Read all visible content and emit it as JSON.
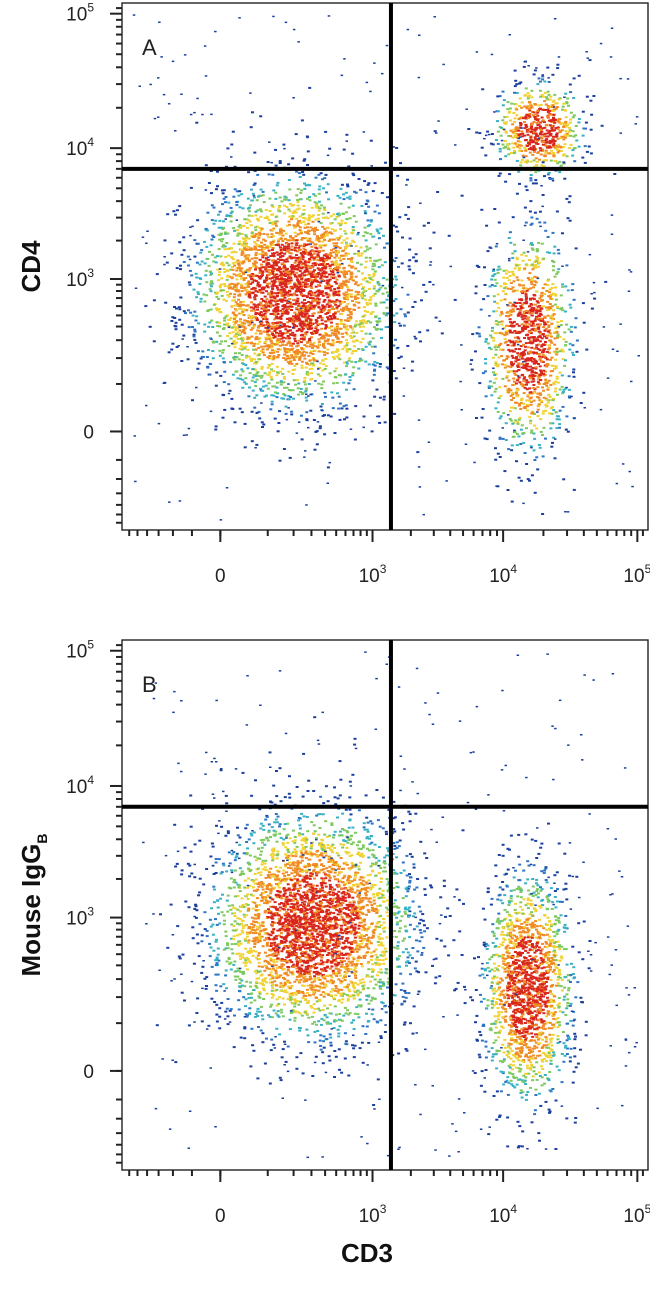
{
  "chart_data": [
    {
      "type": "scatter",
      "panel_label": "A",
      "xlabel": "",
      "ylabel": "CD4",
      "ylabel_sub": "",
      "x_scale": "biexponential",
      "y_scale": "biexponential",
      "x_ticks": [
        {
          "value": 0,
          "base": "0",
          "exp": ""
        },
        {
          "value": 1000,
          "base": "10",
          "exp": "3"
        },
        {
          "value": 10000,
          "base": "10",
          "exp": "4"
        },
        {
          "value": 100000,
          "base": "10",
          "exp": "5"
        }
      ],
      "y_ticks": [
        {
          "value": 0,
          "base": "0",
          "exp": ""
        },
        {
          "value": 1000,
          "base": "10",
          "exp": "3"
        },
        {
          "value": 10000,
          "base": "10",
          "exp": "4"
        },
        {
          "value": 100000,
          "base": "10",
          "exp": "5"
        }
      ],
      "quadrant_gate": {
        "x": 1400,
        "y": 7000
      },
      "populations": [
        {
          "description": "CD3- CD4- / dim",
          "x_center": 200,
          "y_center": 800,
          "share": 0.66
        },
        {
          "description": "CD3+ CD4+",
          "x_center": 18000,
          "y_center": 14000,
          "share": 0.12
        },
        {
          "description": "CD3+ CD4-",
          "x_center": 15000,
          "y_center": 300,
          "share": 0.22
        }
      ],
      "colormap": [
        "#1a3f9e",
        "#2f74c4",
        "#39b1c4",
        "#7dc95e",
        "#f1d233",
        "#f08a24",
        "#d9261c"
      ]
    },
    {
      "type": "scatter",
      "panel_label": "B",
      "xlabel": "CD3",
      "ylabel": "Mouse IgG",
      "ylabel_sub": "B",
      "x_scale": "biexponential",
      "y_scale": "biexponential",
      "x_ticks": [
        {
          "value": 0,
          "base": "0",
          "exp": ""
        },
        {
          "value": 1000,
          "base": "10",
          "exp": "3"
        },
        {
          "value": 10000,
          "base": "10",
          "exp": "4"
        },
        {
          "value": 100000,
          "base": "10",
          "exp": "5"
        }
      ],
      "y_ticks": [
        {
          "value": 0,
          "base": "0",
          "exp": ""
        },
        {
          "value": 1000,
          "base": "10",
          "exp": "3"
        },
        {
          "value": 10000,
          "base": "10",
          "exp": "4"
        },
        {
          "value": 100000,
          "base": "10",
          "exp": "5"
        }
      ],
      "quadrant_gate": {
        "x": 1400,
        "y": 7000
      },
      "populations": [
        {
          "description": "CD3- IgG-",
          "x_center": 300,
          "y_center": 900,
          "share": 0.68
        },
        {
          "description": "CD3+ IgG-",
          "x_center": 15000,
          "y_center": 250,
          "share": 0.32
        }
      ],
      "colormap": [
        "#1a3f9e",
        "#2f74c4",
        "#39b1c4",
        "#7dc95e",
        "#f1d233",
        "#f08a24",
        "#d9261c"
      ]
    }
  ]
}
